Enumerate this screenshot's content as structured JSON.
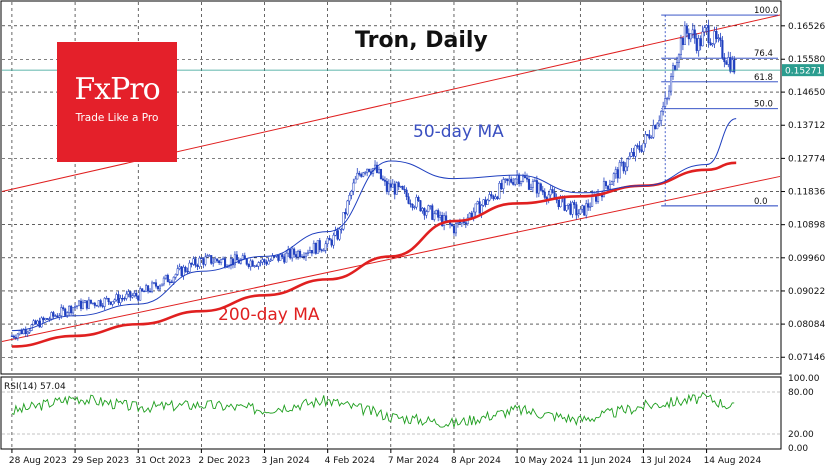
{
  "brand": {
    "logo_text": "FxPro",
    "tagline": "Trade Like a Pro"
  },
  "chart_data": {
    "type": "candlestick",
    "title": "Tron, Daily",
    "x_ticks": [
      "28 Aug 2023",
      "29 Sep 2023",
      "31 Oct 2023",
      "2 Dec 2023",
      "3 Jan 2024",
      "4 Feb 2024",
      "7 Mar 2024",
      "8 Apr 2024",
      "10 May 2024",
      "11 Jun 2024",
      "13 Jul 2024",
      "14 Aug 2024"
    ],
    "y_ticks": [
      "0.16526",
      "0.15580",
      "0.14650",
      "0.13712",
      "0.12774",
      "0.11836",
      "0.10898",
      "0.09960",
      "0.09022",
      "0.08084",
      "0.07146"
    ],
    "y_tick_values": [
      0.16526,
      0.1558,
      0.1465,
      0.13712,
      0.12774,
      0.11836,
      0.10898,
      0.0996,
      0.09022,
      0.08084,
      0.07146
    ],
    "ylim": [
      0.067,
      0.172
    ],
    "current_price": "0.15271",
    "current_price_value": 0.15271,
    "annotations": {
      "ma50": "50-day MA",
      "ma200": "200-day MA"
    },
    "colors": {
      "candle": "#1f3fbf",
      "ma50": "#1f3fbf",
      "ma200": "#e02020",
      "channel": "#e02020",
      "price_line": "#2a9d8f",
      "rsi": "#1e9e1e",
      "logo": "#e4202a"
    },
    "fibonacci": [
      {
        "label": "100.0",
        "value": 0.1683
      },
      {
        "label": "76.4",
        "value": 0.1561
      },
      {
        "label": "61.8",
        "value": 0.1494
      },
      {
        "label": "50.0",
        "value": 0.1418
      },
      {
        "label": "0.0",
        "value": 0.1143
      }
    ],
    "anchor_dates": [
      "2023-08-28",
      "2023-09-29",
      "2023-10-31",
      "2023-12-02",
      "2024-01-03",
      "2024-02-04",
      "2024-03-07",
      "2024-04-08",
      "2024-05-10",
      "2024-06-11",
      "2024-07-13",
      "2024-08-14",
      "2024-08-29"
    ],
    "anchor_closes": [
      0.0775,
      0.086,
      0.089,
      0.099,
      0.0985,
      0.1035,
      0.12,
      0.108,
      0.123,
      0.112,
      0.132,
      0.164,
      0.1527
    ],
    "ma50": {
      "x": [
        "2023-08-28",
        "2023-09-29",
        "2023-10-31",
        "2023-12-02",
        "2024-01-03",
        "2024-02-04",
        "2024-03-07",
        "2024-04-08",
        "2024-05-10",
        "2024-06-11",
        "2024-07-13",
        "2024-08-14",
        "2024-08-29"
      ],
      "y": [
        0.079,
        0.0832,
        0.0865,
        0.0958,
        0.1,
        0.107,
        0.127,
        0.122,
        0.123,
        0.118,
        0.12,
        0.126,
        0.139
      ]
    },
    "ma200": {
      "x": [
        "2023-08-28",
        "2023-09-29",
        "2023-10-31",
        "2023-12-02",
        "2024-01-03",
        "2024-02-04",
        "2024-03-07",
        "2024-04-08",
        "2024-05-10",
        "2024-06-11",
        "2024-07-13",
        "2024-08-14",
        "2024-08-29"
      ],
      "y": [
        0.0745,
        0.0775,
        0.0808,
        0.0845,
        0.089,
        0.0935,
        0.1,
        0.11,
        0.115,
        0.117,
        0.12,
        0.1245,
        0.1265
      ]
    },
    "channel_upper": {
      "x": [
        "2023-08-28",
        "2024-08-29"
      ],
      "y": [
        0.119,
        0.1655
      ]
    },
    "channel_lower": {
      "x": [
        "2023-08-28",
        "2024-08-29"
      ],
      "y": [
        0.0765,
        0.12
      ]
    },
    "rsi": {
      "label": "RSI(14) 57.04",
      "value": 57.04,
      "levels": [
        80,
        20
      ],
      "axis_ticks": [
        "100.00",
        "80.00",
        "20.00",
        "0.00"
      ],
      "axis_values": [
        100,
        80,
        20,
        0
      ],
      "x": [
        "2023-08-28",
        "2023-09-29",
        "2023-10-31",
        "2023-12-02",
        "2024-01-03",
        "2024-02-04",
        "2024-03-07",
        "2024-04-08",
        "2024-05-10",
        "2024-06-11",
        "2024-07-13",
        "2024-08-14",
        "2024-08-29"
      ],
      "y": [
        52,
        72,
        58,
        62,
        55,
        68,
        45,
        35,
        55,
        40,
        60,
        72,
        57
      ]
    }
  }
}
